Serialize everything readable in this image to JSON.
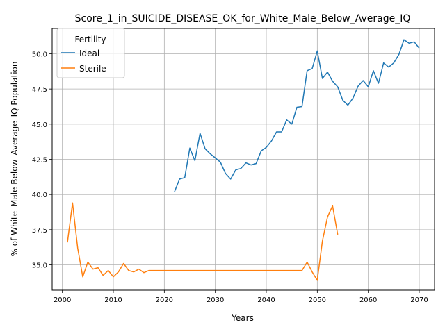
{
  "chart_data": {
    "type": "line",
    "title": "Score_1_in_SUICIDE_DISEASE_OK_for_White_Male_Below_Average_IQ",
    "xlabel": "Years",
    "ylabel": "% of White_Male Below_Average_IQ Population",
    "xlim": [
      1998,
      2073
    ],
    "ylim": [
      33.2,
      51.8
    ],
    "xticks": [
      2000,
      2010,
      2020,
      2030,
      2040,
      2050,
      2060,
      2070
    ],
    "yticks": [
      35.0,
      37.5,
      40.0,
      42.5,
      45.0,
      47.5,
      50.0
    ],
    "grid": true,
    "legend": {
      "title": "Fertility",
      "placement": "top-left"
    },
    "series": [
      {
        "name": "Ideal",
        "color": "#1f77b4",
        "x": [
          2022,
          2023,
          2024,
          2025,
          2026,
          2027,
          2028,
          2029,
          2030,
          2031,
          2032,
          2033,
          2034,
          2035,
          2036,
          2037,
          2038,
          2039,
          2040,
          2041,
          2042,
          2043,
          2044,
          2045,
          2046,
          2047,
          2048,
          2049,
          2050,
          2051,
          2052,
          2053,
          2054,
          2055,
          2056,
          2057,
          2058,
          2059,
          2060,
          2061,
          2062,
          2063,
          2064,
          2065,
          2066,
          2067,
          2068,
          2069,
          2070
        ],
        "y": [
          40.2,
          41.1,
          41.2,
          43.3,
          42.4,
          44.35,
          43.25,
          42.9,
          42.6,
          42.3,
          41.5,
          41.1,
          41.75,
          41.85,
          42.25,
          42.1,
          42.2,
          43.1,
          43.35,
          43.8,
          44.45,
          44.45,
          45.3,
          45.0,
          46.2,
          46.25,
          48.8,
          48.95,
          50.2,
          48.25,
          48.7,
          48.05,
          47.65,
          46.7,
          46.35,
          46.85,
          47.7,
          48.1,
          47.65,
          48.8,
          47.9,
          49.35,
          49.05,
          49.35,
          49.95,
          51.0,
          50.75,
          50.85,
          50.4
        ]
      },
      {
        "name": "Sterile",
        "color": "#ff7f0e",
        "x": [
          2001,
          2002,
          2003,
          2004,
          2005,
          2006,
          2007,
          2008,
          2009,
          2010,
          2011,
          2012,
          2013,
          2014,
          2015,
          2016,
          2017,
          2018,
          2019,
          2020,
          2021,
          2022,
          2023,
          2024,
          2025,
          2026,
          2027,
          2028,
          2029,
          2030,
          2031,
          2032,
          2033,
          2034,
          2035,
          2036,
          2037,
          2038,
          2039,
          2040,
          2041,
          2042,
          2043,
          2044,
          2045,
          2046,
          2047,
          2048,
          2049,
          2050,
          2051,
          2052,
          2053,
          2054
        ],
        "y": [
          36.6,
          39.4,
          36.2,
          34.15,
          35.2,
          34.7,
          34.8,
          34.25,
          34.6,
          34.15,
          34.5,
          35.1,
          34.6,
          34.5,
          34.7,
          34.45,
          34.6,
          34.6,
          34.6,
          34.6,
          34.6,
          34.6,
          34.6,
          34.6,
          34.6,
          34.6,
          34.6,
          34.6,
          34.6,
          34.6,
          34.6,
          34.6,
          34.6,
          34.6,
          34.6,
          34.6,
          34.6,
          34.6,
          34.6,
          34.6,
          34.6,
          34.6,
          34.6,
          34.6,
          34.6,
          34.6,
          34.6,
          35.2,
          34.5,
          33.9,
          36.7,
          38.4,
          39.2,
          37.15
        ]
      }
    ]
  }
}
